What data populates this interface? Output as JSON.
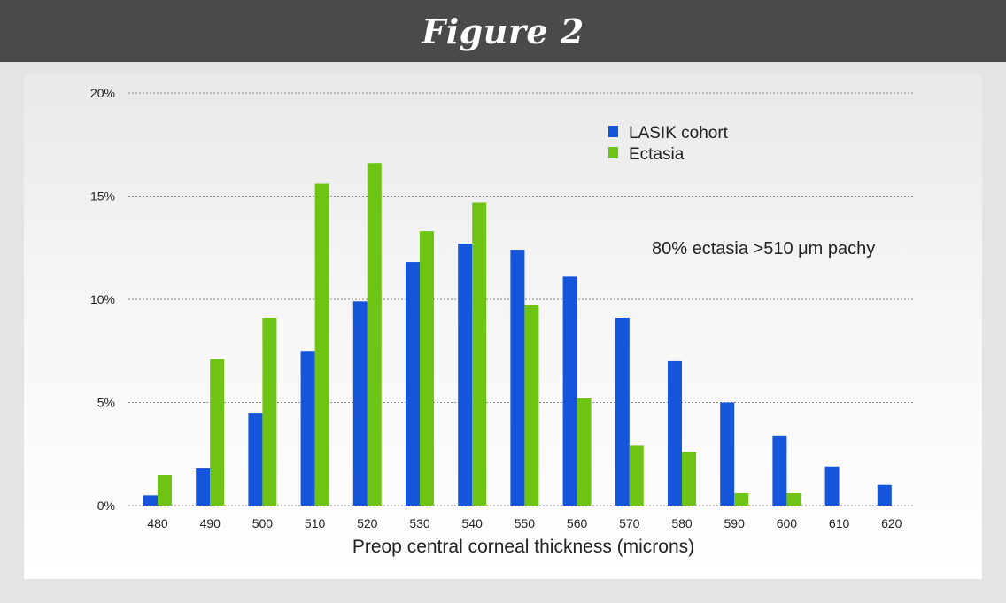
{
  "header": {
    "title": "Figure 2"
  },
  "chart_data": {
    "type": "bar",
    "categories": [
      "480",
      "490",
      "500",
      "510",
      "520",
      "530",
      "540",
      "550",
      "560",
      "570",
      "580",
      "590",
      "600",
      "610",
      "620"
    ],
    "series": [
      {
        "name": "LASIK cohort",
        "color": "#1455db",
        "values": [
          0.5,
          1.8,
          4.5,
          7.5,
          9.9,
          11.8,
          12.7,
          12.4,
          11.1,
          9.1,
          7.0,
          5.0,
          3.4,
          1.9,
          1.0
        ]
      },
      {
        "name": "Ectasia",
        "color": "#6ec412",
        "values": [
          1.5,
          7.1,
          9.1,
          15.6,
          16.6,
          13.3,
          14.7,
          9.7,
          5.2,
          2.9,
          2.6,
          0.6,
          0.6,
          null,
          null
        ]
      }
    ],
    "y_ticks": [
      0,
      5,
      10,
      15,
      20
    ],
    "y_tick_labels": [
      "0%",
      "5%",
      "10%",
      "15%",
      "20%"
    ],
    "ylim": [
      0,
      20
    ],
    "xlabel": "Preop central corneal thickness (microns)",
    "ylabel": "",
    "grid": true,
    "legend_position": "top-right",
    "annotation": "80% ectasia >510 μm pachy"
  }
}
